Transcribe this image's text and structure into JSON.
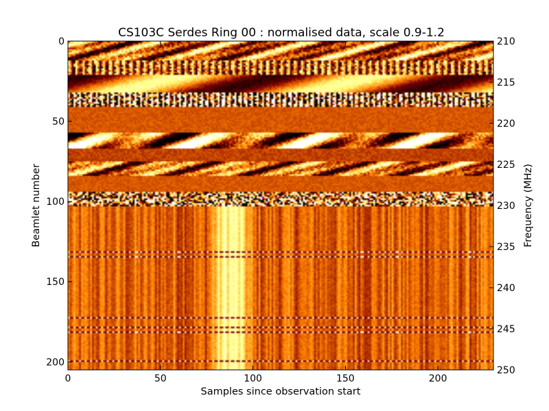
{
  "chart_data": {
    "type": "heatmap",
    "title": "CS103C Serdes Ring 00 : normalised data, scale 0.9-1.2",
    "xlabel": "Samples since observation start",
    "ylabel": "Beamlet number",
    "ylabel_right": "Frequency (MHz)",
    "xlim": [
      0,
      230
    ],
    "ylim": [
      205,
      0
    ],
    "ylim_right": [
      250,
      210
    ],
    "x_ticks": [
      0,
      50,
      100,
      150,
      200
    ],
    "y_ticks": [
      0,
      50,
      100,
      150,
      200
    ],
    "y_right_ticks": [
      210,
      215,
      220,
      225,
      230,
      235,
      240,
      245,
      250
    ],
    "colormap": "afmhot",
    "color_scale": [
      0.9,
      1.2
    ],
    "colors": {
      "low": "#000000",
      "mid": "#b84a00",
      "high": "#ffffff"
    },
    "rows": {
      "count": 205,
      "bands": [
        {
          "start": 0,
          "end": 12,
          "pattern": "blotchy"
        },
        {
          "start": 12,
          "end": 21,
          "pattern": "striped"
        },
        {
          "start": 21,
          "end": 32,
          "pattern": "smooth-wave"
        },
        {
          "start": 32,
          "end": 41,
          "pattern": "striped-contrast"
        },
        {
          "start": 41,
          "end": 57,
          "pattern": "flat"
        },
        {
          "start": 57,
          "end": 67,
          "pattern": "blotchy-contrast"
        },
        {
          "start": 67,
          "end": 75,
          "pattern": "flat-dark"
        },
        {
          "start": 75,
          "end": 84,
          "pattern": "blotchy"
        },
        {
          "start": 84,
          "end": 94,
          "pattern": "flat"
        },
        {
          "start": 94,
          "end": 103,
          "pattern": "noisy"
        },
        {
          "start": 103,
          "end": 205,
          "pattern": "vertical-streaks"
        }
      ],
      "horizontal_lines": [
        131,
        134,
        172,
        178,
        181,
        199
      ],
      "bright_spot_columns": [
        9,
        37,
        59,
        96,
        120,
        158,
        178,
        217
      ]
    }
  }
}
